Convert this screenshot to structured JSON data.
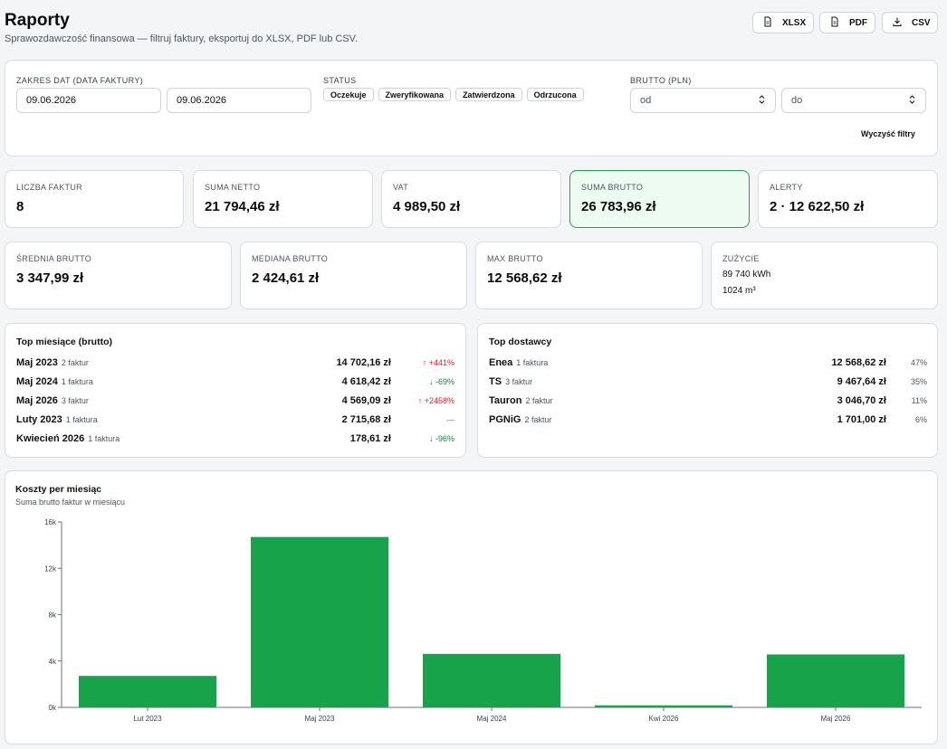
{
  "header": {
    "title": "Raporty",
    "subtitle": "Sprawozdawczość finansowa — filtruj faktury, eksportuj do XLSX, PDF lub CSV.",
    "export": [
      {
        "label": "XLSX",
        "icon": "file-icon"
      },
      {
        "label": "PDF",
        "icon": "file-icon"
      },
      {
        "label": "CSV",
        "icon": "download-icon"
      }
    ]
  },
  "filters": {
    "date_label": "ZAKRES DAT (DATA FAKTURY)",
    "date_from": "09.06.2026",
    "date_to": "09.06.2026",
    "status_label": "STATUS",
    "statuses": [
      "Oczekuje",
      "Zweryfikowana",
      "Zatwierdzona",
      "Odrzucona"
    ],
    "brutto_label": "BRUTTO (PLN)",
    "brutto_from_placeholder": "od",
    "brutto_to_placeholder": "do",
    "clear_label": "Wyczyść filtry"
  },
  "stats_row1": [
    {
      "label": "LICZBA FAKTUR",
      "value": "8"
    },
    {
      "label": "SUMA NETTO",
      "value": "21 794,46 zł"
    },
    {
      "label": "VAT",
      "value": "4 989,50 zł"
    },
    {
      "label": "SUMA BRUTTO",
      "value": "26 783,96 zł"
    },
    {
      "label": "ALERTY",
      "value": "2 · 12 622,50 zł"
    }
  ],
  "stats_row2": [
    {
      "label": "ŚREDNIA BRUTTO",
      "value": "3 347,99 zł"
    },
    {
      "label": "MEDIANA BRUTTO",
      "value": "2 424,61 zł"
    },
    {
      "label": "MAX BRUTTO",
      "value": "12 568,62 zł"
    }
  ],
  "usage": {
    "label": "ZUŻYCIE",
    "kwh": "89 740 kWh",
    "m3": "1024 m³"
  },
  "top_months": {
    "title": "Top miesiące (brutto)",
    "rows": [
      {
        "name": "Maj 2023",
        "count": "2 faktur",
        "amount": "14 702,16 zł",
        "change": "↑ +441%",
        "dir": "up"
      },
      {
        "name": "Maj 2024",
        "count": "1 faktura",
        "amount": "4 618,42 zł",
        "change": "↓ -69%",
        "dir": "down"
      },
      {
        "name": "Maj 2026",
        "count": "3 faktur",
        "amount": "4 569,09 zł",
        "change": "↑ +2458%",
        "dir": "up"
      },
      {
        "name": "Luty 2023",
        "count": "1 faktura",
        "amount": "2 715,68 zł",
        "change": "—",
        "dir": "flat"
      },
      {
        "name": "Kwiecień 2026",
        "count": "1 faktura",
        "amount": "178,61 zł",
        "change": "↓ -96%",
        "dir": "down"
      }
    ]
  },
  "top_suppliers": {
    "title": "Top dostawcy",
    "rows": [
      {
        "name": "Enea",
        "count": "1 faktura",
        "amount": "12 568,62 zł",
        "pct": "47%"
      },
      {
        "name": "TS",
        "count": "3 faktur",
        "amount": "9 467,64 zł",
        "pct": "35%"
      },
      {
        "name": "Tauron",
        "count": "2 faktur",
        "amount": "3 046,70 zł",
        "pct": "11%"
      },
      {
        "name": "PGNiG",
        "count": "2 faktur",
        "amount": "1 701,00 zł",
        "pct": "6%"
      }
    ]
  },
  "chart_data": {
    "type": "bar",
    "title": "Koszty per miesiąc",
    "subtitle": "Suma brutto faktur w miesiącu",
    "categories": [
      "Lut 2023",
      "Maj 2023",
      "Maj 2024",
      "Kwi 2026",
      "Maj 2026"
    ],
    "values": [
      2715.68,
      14702.16,
      4618.42,
      178.61,
      4569.09
    ],
    "ylim": [
      0,
      16000
    ],
    "yticks": [
      "0k",
      "4k",
      "8k",
      "12k",
      "16k"
    ],
    "bar_color": "#16a34a",
    "grid": false
  },
  "colors": {
    "accent": "#16a34a",
    "up": "#dc2626",
    "down": "#16803c"
  }
}
